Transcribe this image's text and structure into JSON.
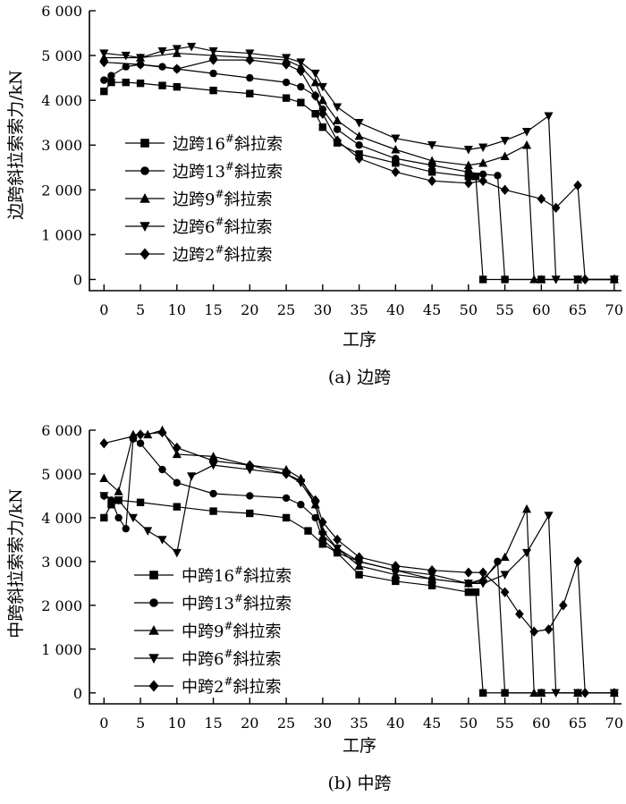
{
  "chart_data": [
    {
      "type": "line",
      "caption": "(a) 边跨",
      "xlabel": "工序",
      "ylabel": "边跨斜拉索索力/kN",
      "xlim": [
        -2,
        71
      ],
      "ylim": [
        -250,
        6000
      ],
      "xticks": [
        0,
        5,
        10,
        15,
        20,
        25,
        30,
        35,
        40,
        45,
        50,
        55,
        60,
        65,
        70
      ],
      "xtick_labels": [
        "0",
        "5",
        "10",
        "15",
        "20",
        "25",
        "30",
        "35",
        "40",
        "45",
        "50",
        "55",
        "60",
        "65",
        "70"
      ],
      "yticks": [
        0,
        1000,
        2000,
        3000,
        4000,
        5000,
        6000
      ],
      "ytick_labels": [
        "0",
        "1 000",
        "2 000",
        "3 000",
        "4 000",
        "5 000",
        "6 000"
      ],
      "legend_position": "center-left",
      "series": [
        {
          "name": "边跨16",
          "marker": "square",
          "cut": 52,
          "x": [
            0,
            1,
            3,
            5,
            8,
            10,
            15,
            20,
            25,
            27,
            29,
            30,
            32,
            35,
            40,
            45,
            50,
            51,
            52,
            55,
            60,
            65,
            70
          ],
          "values": [
            4200,
            4400,
            4400,
            4380,
            4330,
            4300,
            4220,
            4150,
            4050,
            3950,
            3700,
            3400,
            3050,
            2800,
            2600,
            2400,
            2300,
            2300,
            0,
            0,
            0,
            0,
            0
          ]
        },
        {
          "name": "边跨13",
          "marker": "circle",
          "cut": 55,
          "x": [
            0,
            1,
            3,
            5,
            8,
            10,
            15,
            20,
            25,
            27,
            29,
            30,
            32,
            35,
            40,
            45,
            50,
            52,
            54,
            55,
            60,
            65,
            70
          ],
          "values": [
            4450,
            4550,
            4750,
            4800,
            4750,
            4700,
            4600,
            4500,
            4400,
            4300,
            4100,
            3800,
            3350,
            3000,
            2700,
            2550,
            2400,
            2350,
            2320,
            0,
            0,
            0,
            0
          ]
        },
        {
          "name": "边跨9",
          "marker": "triangle-up",
          "cut": 59,
          "x": [
            0,
            5,
            10,
            15,
            20,
            25,
            27,
            29,
            30,
            32,
            35,
            40,
            45,
            50,
            52,
            55,
            58,
            59,
            60,
            65,
            70
          ],
          "values": [
            4950,
            4950,
            5050,
            5000,
            4950,
            4900,
            4750,
            4400,
            4000,
            3550,
            3200,
            2900,
            2650,
            2550,
            2600,
            2750,
            3000,
            0,
            0,
            0,
            0
          ]
        },
        {
          "name": "边跨6",
          "marker": "triangle-down",
          "cut": 62,
          "x": [
            0,
            3,
            5,
            8,
            10,
            12,
            15,
            20,
            25,
            27,
            29,
            30,
            32,
            35,
            40,
            45,
            50,
            52,
            55,
            58,
            61,
            62,
            65,
            70
          ],
          "values": [
            5050,
            5000,
            4950,
            5100,
            5150,
            5200,
            5100,
            5050,
            4950,
            4850,
            4600,
            4300,
            3850,
            3500,
            3150,
            3000,
            2900,
            2950,
            3100,
            3300,
            3650,
            0,
            0,
            0
          ]
        },
        {
          "name": "边跨2",
          "marker": "diamond",
          "cut": 66,
          "x": [
            0,
            5,
            10,
            15,
            20,
            25,
            27,
            29,
            30,
            32,
            35,
            40,
            45,
            50,
            52,
            55,
            60,
            62,
            65,
            66,
            70
          ],
          "values": [
            4850,
            4800,
            4700,
            4900,
            4900,
            4800,
            4650,
            4100,
            3700,
            3100,
            2700,
            2400,
            2200,
            2150,
            2200,
            2000,
            1800,
            1600,
            2100,
            0,
            0
          ]
        }
      ]
    },
    {
      "type": "line",
      "caption": "(b) 中跨",
      "xlabel": "工序",
      "ylabel": "中跨斜拉索索力/kN",
      "xlim": [
        -2,
        71
      ],
      "ylim": [
        -250,
        6000
      ],
      "xticks": [
        0,
        5,
        10,
        15,
        20,
        25,
        30,
        35,
        40,
        45,
        50,
        55,
        60,
        65,
        70
      ],
      "xtick_labels": [
        "0",
        "5",
        "10",
        "15",
        "20",
        "25",
        "30",
        "35",
        "40",
        "45",
        "50",
        "55",
        "60",
        "65",
        "70"
      ],
      "yticks": [
        0,
        1000,
        2000,
        3000,
        4000,
        5000,
        6000
      ],
      "ytick_labels": [
        "0",
        "1 000",
        "2 000",
        "3 000",
        "4 000",
        "5 000",
        "6 000"
      ],
      "legend_position": "bottom-left",
      "series": [
        {
          "name": "中跨16",
          "marker": "square",
          "cut": 52,
          "x": [
            0,
            1,
            2,
            5,
            10,
            15,
            20,
            25,
            28,
            30,
            32,
            35,
            40,
            45,
            50,
            51,
            52,
            55,
            60,
            65,
            70
          ],
          "values": [
            4000,
            4300,
            4400,
            4350,
            4250,
            4150,
            4100,
            4000,
            3700,
            3400,
            3200,
            2700,
            2550,
            2450,
            2300,
            2300,
            0,
            0,
            0,
            0,
            0
          ]
        },
        {
          "name": "中跨13",
          "marker": "circle",
          "cut": 55,
          "x": [
            0,
            1,
            2,
            3,
            4,
            5,
            8,
            10,
            15,
            20,
            25,
            27,
            29,
            30,
            32,
            35,
            40,
            45,
            50,
            52,
            54,
            55,
            60,
            65,
            70
          ],
          "values": [
            4500,
            4400,
            4000,
            3750,
            5800,
            5700,
            5100,
            4800,
            4550,
            4500,
            4450,
            4300,
            4000,
            3500,
            3200,
            3000,
            2800,
            2600,
            2500,
            2550,
            3000,
            0,
            0,
            0,
            0
          ]
        },
        {
          "name": "中跨9",
          "marker": "triangle-up",
          "cut": 59,
          "x": [
            0,
            2,
            4,
            6,
            8,
            10,
            15,
            20,
            25,
            27,
            29,
            30,
            32,
            35,
            40,
            45,
            50,
            52,
            55,
            58,
            59,
            60,
            65,
            70
          ],
          "values": [
            4900,
            4600,
            5900,
            5900,
            6000,
            5450,
            5400,
            5200,
            5100,
            4900,
            4300,
            3700,
            3300,
            2900,
            2700,
            2600,
            2500,
            2600,
            3100,
            4200,
            0,
            0,
            0,
            0
          ]
        },
        {
          "name": "中跨6",
          "marker": "triangle-down",
          "cut": 62,
          "x": [
            0,
            2,
            4,
            6,
            8,
            10,
            12,
            15,
            20,
            25,
            27,
            29,
            30,
            32,
            35,
            40,
            45,
            50,
            52,
            55,
            58,
            61,
            62,
            65,
            70
          ],
          "values": [
            4500,
            4400,
            4000,
            3700,
            3500,
            3200,
            4950,
            5200,
            5100,
            5000,
            4800,
            4300,
            3600,
            3300,
            3000,
            2800,
            2700,
            2500,
            2500,
            2700,
            3200,
            4050,
            0,
            0,
            0
          ]
        },
        {
          "name": "中跨2",
          "marker": "diamond",
          "cut": 66,
          "x": [
            0,
            5,
            8,
            10,
            15,
            20,
            25,
            27,
            29,
            30,
            32,
            35,
            40,
            45,
            50,
            52,
            55,
            57,
            59,
            61,
            63,
            65,
            66,
            70
          ],
          "values": [
            5700,
            5900,
            5950,
            5600,
            5300,
            5200,
            5000,
            4850,
            4400,
            3900,
            3500,
            3100,
            2900,
            2800,
            2750,
            2750,
            2300,
            1800,
            1400,
            1450,
            2000,
            3000,
            0,
            0
          ]
        }
      ]
    }
  ]
}
